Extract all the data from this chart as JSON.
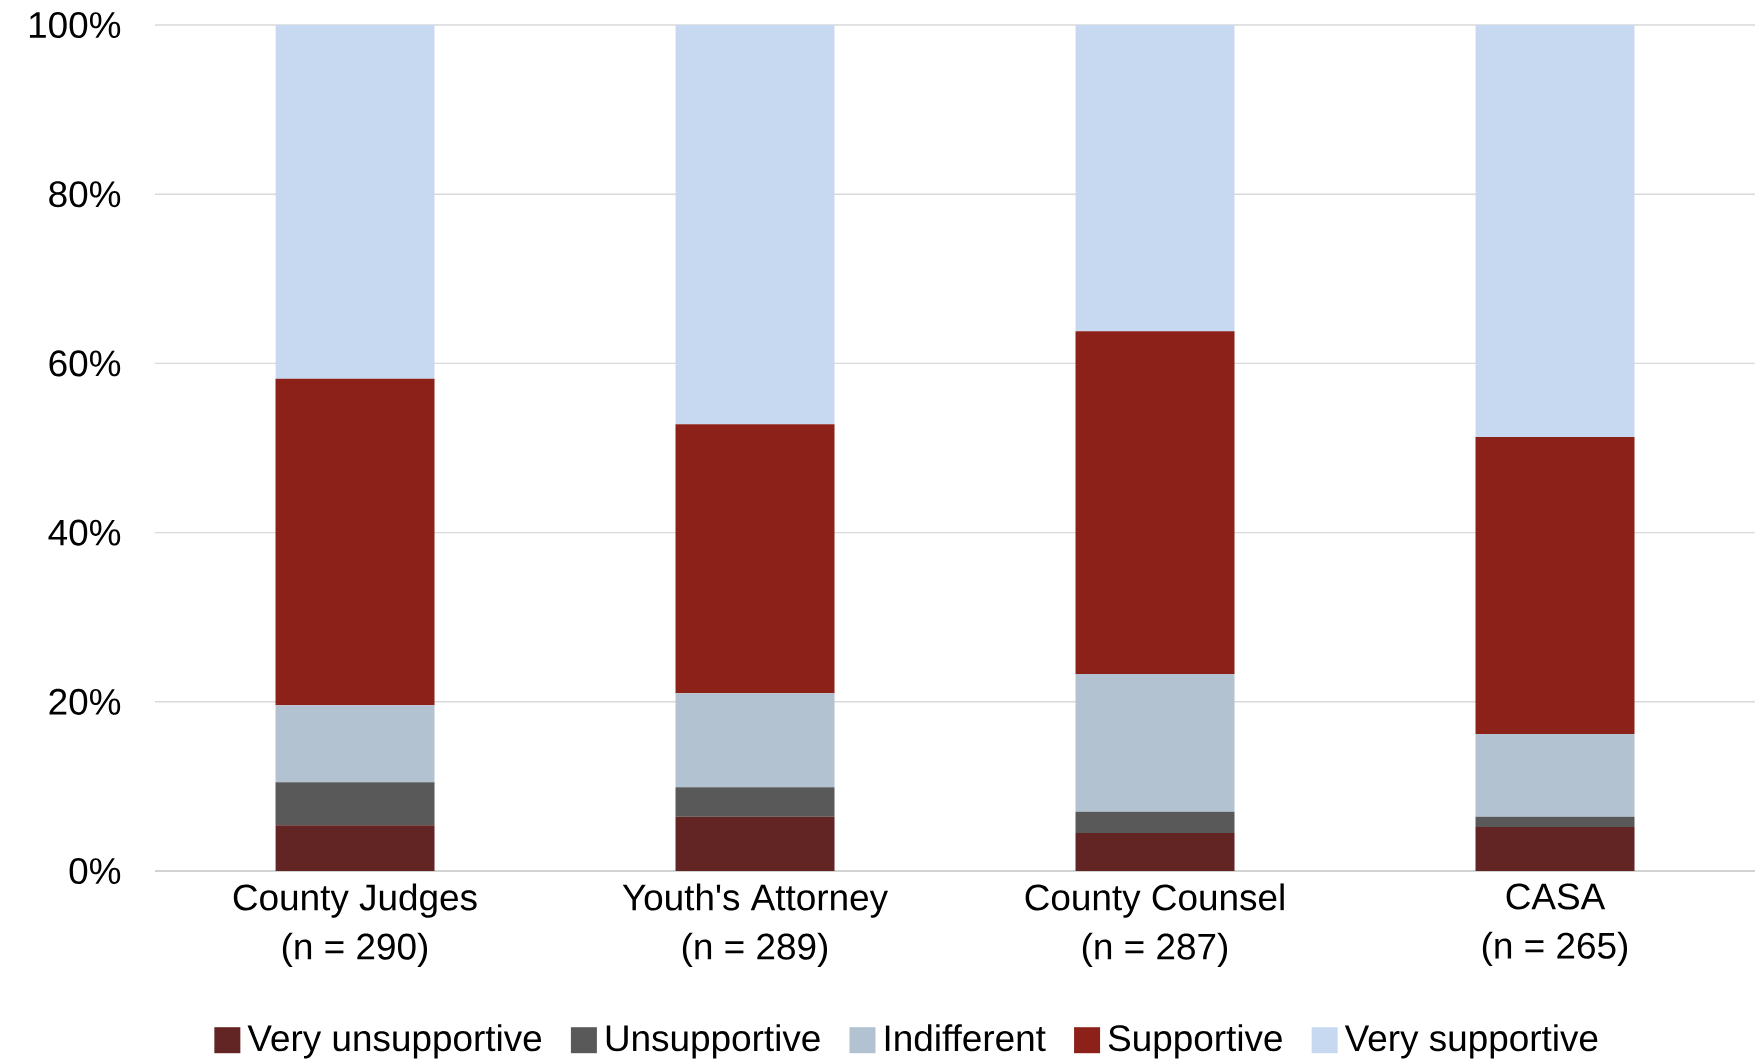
{
  "chart_data": {
    "type": "bar",
    "stacked": true,
    "categories": [
      "County Judges\n(n = 290)",
      "Youth's Attorney\n(n = 289)",
      "County Counsel\n(n = 287)",
      "CASA\n(n = 265)"
    ],
    "series": [
      {
        "name": "Very unsupportive",
        "color": "#632523",
        "values": [
          5.4,
          6.4,
          4.5,
          5.2
        ]
      },
      {
        "name": "Unsupportive",
        "color": "#595959",
        "values": [
          5.1,
          3.5,
          2.5,
          1.2
        ]
      },
      {
        "name": "Indifferent",
        "color": "#b3c2d0",
        "values": [
          9.1,
          11.1,
          16.3,
          9.8
        ]
      },
      {
        "name": "Supportive",
        "color": "#8b2118",
        "values": [
          38.6,
          31.8,
          40.5,
          35.1
        ]
      },
      {
        "name": "Very supportive",
        "color": "#c6d9f0",
        "values": [
          41.8,
          47.2,
          36.2,
          48.7
        ]
      }
    ],
    "ylim": [
      0,
      100
    ],
    "yticks": [
      {
        "value": 0,
        "label": "0%"
      },
      {
        "value": 20,
        "label": "20%"
      },
      {
        "value": 40,
        "label": "40%"
      },
      {
        "value": 60,
        "label": "60%"
      },
      {
        "value": 80,
        "label": "80%"
      },
      {
        "value": 100,
        "label": "100%"
      }
    ],
    "grid": "y",
    "legend": "bottom"
  }
}
